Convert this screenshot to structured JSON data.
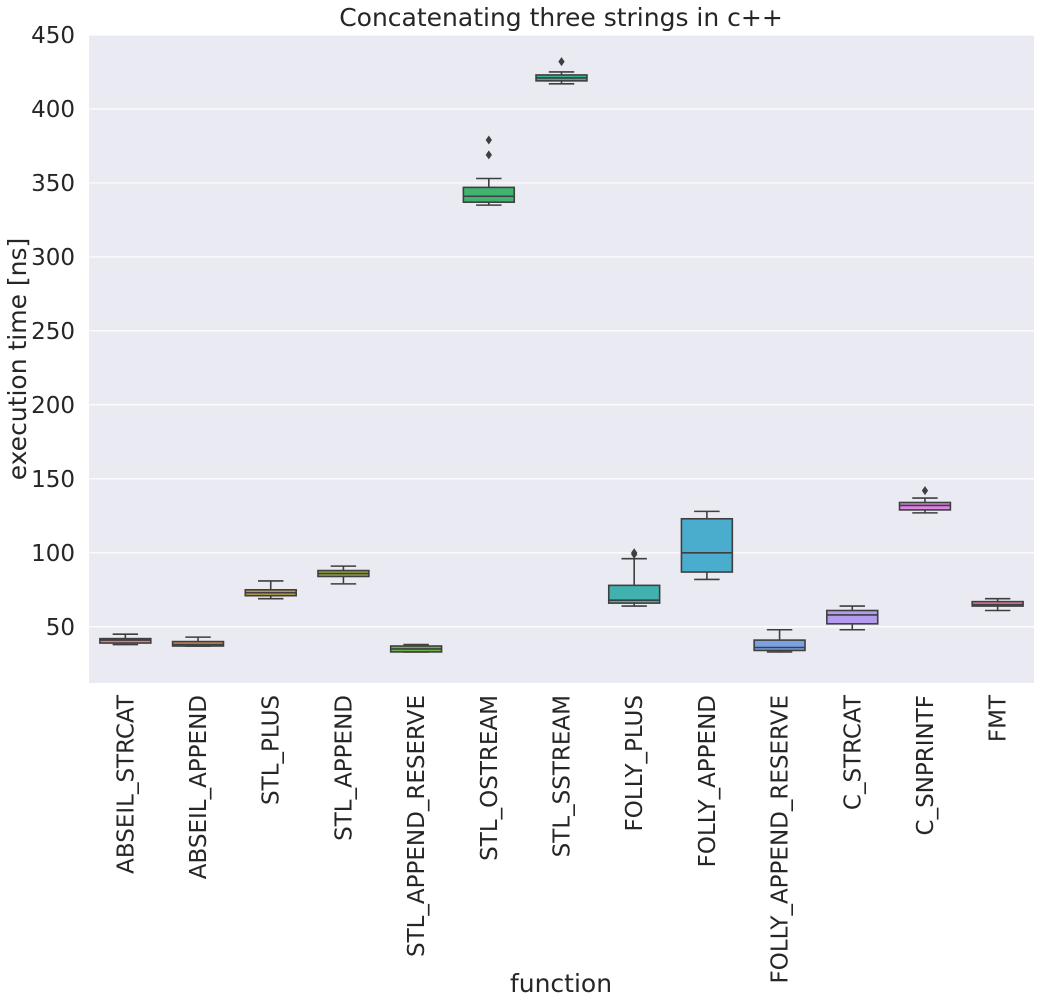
{
  "chart_data": {
    "type": "box",
    "title": "Concatenating three strings in c++",
    "xlabel": "function",
    "ylabel": "execution time [ns]",
    "ylim": [
      12,
      450
    ],
    "yticks": [
      50,
      100,
      150,
      200,
      250,
      300,
      350,
      400,
      450
    ],
    "grid": true,
    "legend": "none",
    "categories": [
      "ABSEIL_STRCAT",
      "ABSEIL_APPEND",
      "STL_PLUS",
      "STL_APPEND",
      "STL_APPEND_RESERVE",
      "STL_OSTREAM",
      "STL_SSTREAM",
      "FOLLY_PLUS",
      "FOLLY_APPEND",
      "FOLLY_APPEND_RESERVE",
      "C_STRCAT",
      "C_SNPRINTF",
      "FMT"
    ],
    "boxes": [
      {
        "whisker_low": 38,
        "q1": 39,
        "median": 41,
        "q3": 42,
        "whisker_high": 45,
        "outliers": [],
        "color": "#e6797f"
      },
      {
        "whisker_low": 37,
        "q1": 37,
        "median": 38,
        "q3": 40,
        "whisker_high": 43,
        "outliers": [],
        "color": "#d18a5e"
      },
      {
        "whisker_low": 69,
        "q1": 71,
        "median": 73,
        "q3": 75,
        "whisker_high": 81,
        "outliers": [],
        "color": "#b49a4a"
      },
      {
        "whisker_low": 79,
        "q1": 84,
        "median": 86,
        "q3": 88,
        "whisker_high": 91,
        "outliers": [],
        "color": "#98a640"
      },
      {
        "whisker_low": 33,
        "q1": 33,
        "median": 35,
        "q3": 37,
        "whisker_high": 38,
        "outliers": [],
        "color": "#6db44a"
      },
      {
        "whisker_low": 335,
        "q1": 337,
        "median": 341,
        "q3": 347,
        "whisker_high": 353,
        "outliers": [
          369,
          379
        ],
        "color": "#3fb36f"
      },
      {
        "whisker_low": 417,
        "q1": 419,
        "median": 421,
        "q3": 423,
        "whisker_high": 425,
        "outliers": [
          432
        ],
        "color": "#3cb095"
      },
      {
        "whisker_low": 64,
        "q1": 66,
        "median": 68,
        "q3": 78,
        "whisker_high": 96,
        "outliers": [
          99,
          100
        ],
        "color": "#41b1b0"
      },
      {
        "whisker_low": 82,
        "q1": 87,
        "median": 100,
        "q3": 123,
        "whisker_high": 128,
        "outliers": [],
        "color": "#4aadce"
      },
      {
        "whisker_low": 33,
        "q1": 34,
        "median": 36,
        "q3": 41,
        "whisker_high": 48,
        "outliers": [],
        "color": "#7aa2e3"
      },
      {
        "whisker_low": 48,
        "q1": 52,
        "median": 58,
        "q3": 61,
        "whisker_high": 64,
        "outliers": [],
        "color": "#b39bee"
      },
      {
        "whisker_low": 127,
        "q1": 129,
        "median": 132,
        "q3": 134,
        "whisker_high": 137,
        "outliers": [
          142
        ],
        "color": "#dc86e2"
      },
      {
        "whisker_low": 61,
        "q1": 64,
        "median": 65,
        "q3": 67,
        "whisker_high": 69,
        "outliers": [],
        "color": "#e97fb8"
      }
    ]
  }
}
